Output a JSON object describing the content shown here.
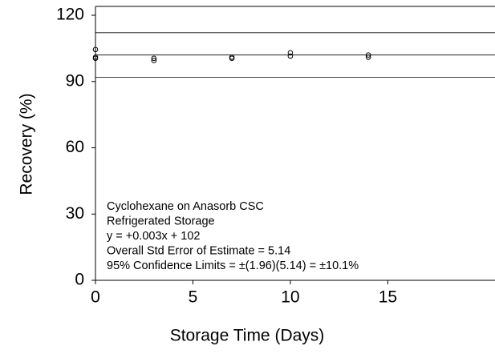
{
  "chart_data": {
    "type": "scatter",
    "x_label": "Storage Time (Days)",
    "y_label": "Recovery (%)",
    "xlim": [
      0,
      20.5
    ],
    "xticks": [
      0,
      5,
      10,
      15
    ],
    "ylim": [
      0,
      124
    ],
    "yticks": [
      0,
      30,
      60,
      90,
      120
    ],
    "series": [
      {
        "color": "#000000",
        "x": [
          0,
          0,
          0,
          3,
          3,
          7,
          7,
          10,
          10,
          14,
          14
        ],
        "y": [
          104.5,
          101,
          100.5,
          100.5,
          99.5,
          100.5,
          101,
          103,
          101.5,
          102,
          101
        ]
      }
    ],
    "hlines": [
      112.1,
      102,
      91.9
    ],
    "annotations": [
      "Cyclohexane on Anasorb CSC",
      "Refrigerated Storage",
      "y = +0.003x + 102",
      "Overall Std Error of Estimate = 5.14",
      "95% Confidence Limits = ±(1.96)(5.14) = ±10.1%"
    ]
  }
}
